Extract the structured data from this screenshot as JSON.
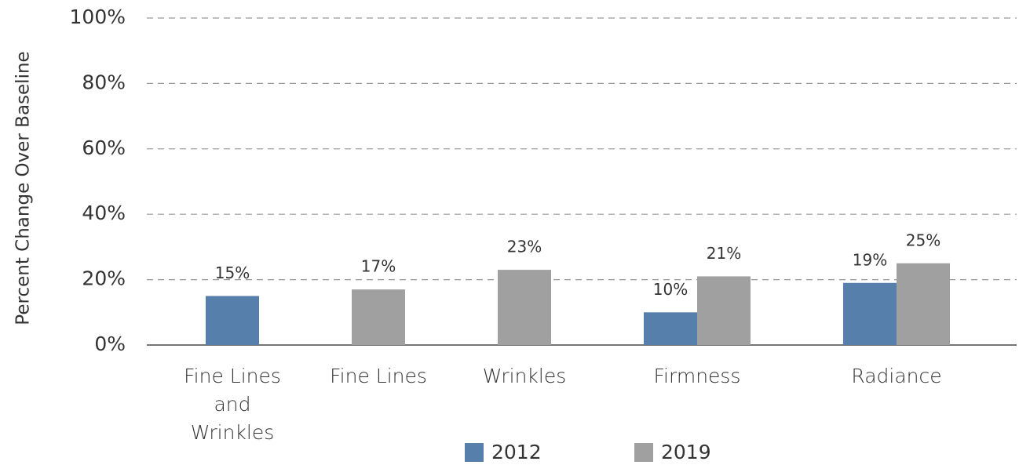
{
  "chart_data": {
    "type": "bar",
    "y_label": "Percent Change Over Baseline",
    "categories": [
      "Fine Lines and Wrinkles",
      "Fine Lines",
      "Wrinkles",
      "Firmness",
      "Radiance"
    ],
    "series": [
      {
        "name": "2012",
        "color": "#577fab",
        "values": [
          15,
          null,
          null,
          10,
          19
        ],
        "value_labels": [
          "15%",
          null,
          null,
          "10%",
          "19%"
        ]
      },
      {
        "name": "2019",
        "color": "#a0a0a0",
        "values": [
          null,
          17,
          23,
          21,
          25
        ],
        "value_labels": [
          null,
          "17%",
          "23%",
          "21%",
          "25%"
        ]
      }
    ],
    "ylim": [
      0,
      100
    ],
    "yticks": [
      {
        "value": 0,
        "label": "0%"
      },
      {
        "value": 20,
        "label": "20%"
      },
      {
        "value": 40,
        "label": "40%"
      },
      {
        "value": 60,
        "label": "60%"
      },
      {
        "value": 80,
        "label": "80%"
      },
      {
        "value": 100,
        "label": "100%"
      }
    ],
    "grid": true,
    "legend": "bottom"
  }
}
